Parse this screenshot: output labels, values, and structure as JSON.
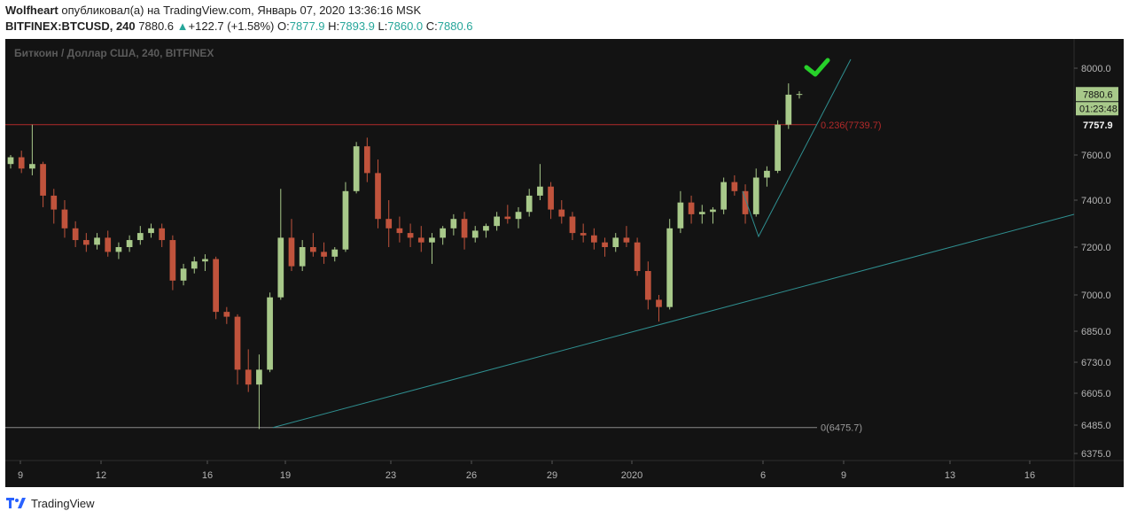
{
  "header": {
    "author": "Wolfheart",
    "publish_text": "опубликовал(а) на TradingView.com, Январь 07, 2020 13:36:16 MSK",
    "symbol": "BITFINEX:BTCUSD, 240",
    "last": "7880.6",
    "arrow": "▲",
    "change": "+122.7 (+1.58%)",
    "o_label": "O:",
    "o_value": "7877.9",
    "h_label": "H:",
    "h_value": "7893.9",
    "l_label": "L:",
    "l_value": "7860.0",
    "c_label": "C:",
    "c_value": "7880.6"
  },
  "footer": {
    "brand": "TradingView",
    "logo_icon": "tradingview-logo-icon"
  },
  "colors": {
    "background": "#131313",
    "up": "#a8c98a",
    "down": "#c0533c",
    "trend": "#2f8f90",
    "fib_red": "#b22a2a",
    "fib_zero": "#8a8a8a",
    "check": "#27d12a",
    "axis_text": "#b5b5b5"
  },
  "chart_data": {
    "type": "candlestick",
    "title": "Биткоин / Доллар США, 240, BITFINEX",
    "y_ticks": [
      "8000.0",
      "7600.0",
      "7400.0",
      "7200.0",
      "7000.0",
      "6850.0",
      "6730.0",
      "6605.0",
      "6485.0",
      "6375.0"
    ],
    "x_ticks": [
      "9",
      "12",
      "16",
      "19",
      "23",
      "26",
      "29",
      "2020",
      "6",
      "9",
      "13",
      "16"
    ],
    "last_price_label": "7880.6",
    "countdown_label": "01:23:48",
    "partial_label": "7757.9",
    "fib_levels": [
      {
        "label": "0.236(7739.7)",
        "price": 7739.7
      },
      {
        "label": "0(6475.7)",
        "price": 6475.7
      }
    ],
    "candles_ohlc_approx": [
      [
        7560,
        7600,
        7540,
        7590
      ],
      [
        7590,
        7620,
        7520,
        7540
      ],
      [
        7540,
        7740,
        7510,
        7560
      ],
      [
        7560,
        7570,
        7370,
        7420
      ],
      [
        7420,
        7450,
        7300,
        7360
      ],
      [
        7360,
        7400,
        7240,
        7280
      ],
      [
        7280,
        7310,
        7200,
        7230
      ],
      [
        7230,
        7260,
        7180,
        7210
      ],
      [
        7210,
        7260,
        7190,
        7240
      ],
      [
        7240,
        7270,
        7160,
        7180
      ],
      [
        7180,
        7220,
        7150,
        7200
      ],
      [
        7200,
        7250,
        7180,
        7230
      ],
      [
        7230,
        7290,
        7210,
        7260
      ],
      [
        7260,
        7300,
        7240,
        7280
      ],
      [
        7280,
        7300,
        7200,
        7230
      ],
      [
        7230,
        7250,
        7020,
        7060
      ],
      [
        7060,
        7130,
        7040,
        7110
      ],
      [
        7110,
        7160,
        7090,
        7140
      ],
      [
        7140,
        7170,
        7100,
        7150
      ],
      [
        7150,
        7160,
        6900,
        6930
      ],
      [
        6930,
        6950,
        6880,
        6910
      ],
      [
        6910,
        6920,
        6640,
        6700
      ],
      [
        6700,
        6780,
        6610,
        6640
      ],
      [
        6640,
        6760,
        6470,
        6700
      ],
      [
        6700,
        7010,
        6690,
        6990
      ],
      [
        6990,
        7450,
        6980,
        7240
      ],
      [
        7240,
        7320,
        7100,
        7120
      ],
      [
        7120,
        7230,
        7100,
        7200
      ],
      [
        7200,
        7260,
        7160,
        7180
      ],
      [
        7180,
        7220,
        7130,
        7160
      ],
      [
        7160,
        7200,
        7140,
        7190
      ],
      [
        7190,
        7480,
        7180,
        7440
      ],
      [
        7440,
        7660,
        7430,
        7640
      ],
      [
        7640,
        7680,
        7480,
        7520
      ],
      [
        7520,
        7580,
        7280,
        7320
      ],
      [
        7320,
        7400,
        7200,
        7280
      ],
      [
        7280,
        7330,
        7220,
        7260
      ],
      [
        7260,
        7300,
        7200,
        7240
      ],
      [
        7240,
        7290,
        7180,
        7220
      ],
      [
        7220,
        7260,
        7130,
        7240
      ],
      [
        7240,
        7290,
        7210,
        7280
      ],
      [
        7280,
        7340,
        7250,
        7320
      ],
      [
        7320,
        7350,
        7190,
        7240
      ],
      [
        7240,
        7290,
        7220,
        7270
      ],
      [
        7270,
        7300,
        7240,
        7290
      ],
      [
        7290,
        7350,
        7270,
        7330
      ],
      [
        7330,
        7380,
        7300,
        7320
      ],
      [
        7320,
        7370,
        7280,
        7350
      ],
      [
        7350,
        7450,
        7330,
        7420
      ],
      [
        7420,
        7560,
        7400,
        7460
      ],
      [
        7460,
        7480,
        7320,
        7360
      ],
      [
        7360,
        7400,
        7300,
        7330
      ],
      [
        7330,
        7350,
        7230,
        7260
      ],
      [
        7260,
        7300,
        7220,
        7250
      ],
      [
        7250,
        7280,
        7190,
        7220
      ],
      [
        7220,
        7240,
        7160,
        7200
      ],
      [
        7200,
        7260,
        7180,
        7240
      ],
      [
        7240,
        7290,
        7200,
        7220
      ],
      [
        7220,
        7240,
        7080,
        7100
      ],
      [
        7100,
        7140,
        6940,
        6980
      ],
      [
        6980,
        7000,
        6890,
        6950
      ],
      [
        6950,
        7320,
        6940,
        7280
      ],
      [
        7280,
        7440,
        7260,
        7390
      ],
      [
        7390,
        7420,
        7300,
        7340
      ],
      [
        7340,
        7380,
        7300,
        7350
      ],
      [
        7350,
        7370,
        7300,
        7360
      ],
      [
        7360,
        7500,
        7340,
        7480
      ],
      [
        7480,
        7510,
        7420,
        7440
      ],
      [
        7440,
        7470,
        7300,
        7340
      ],
      [
        7340,
        7540,
        7330,
        7500
      ],
      [
        7500,
        7550,
        7460,
        7530
      ],
      [
        7530,
        7760,
        7520,
        7740
      ],
      [
        7740,
        7930,
        7720,
        7878
      ],
      [
        7878,
        7894,
        7860,
        7881
      ]
    ]
  }
}
